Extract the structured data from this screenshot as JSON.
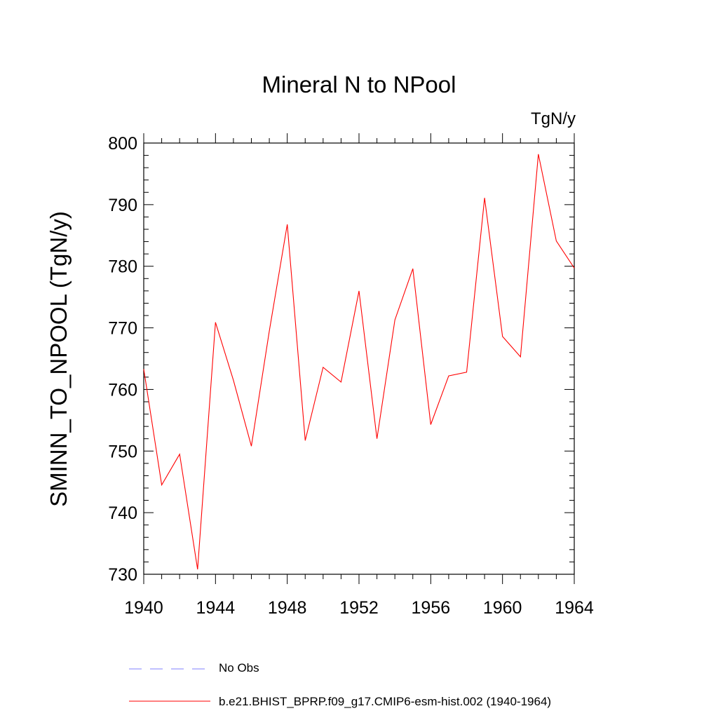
{
  "chart_data": {
    "type": "line",
    "title": "Mineral N to NPool",
    "units_label": "TgN/y",
    "xlabel": "",
    "ylabel": "SMINN_TO_NPOOL  (TgN/y)",
    "xlim": [
      1940,
      1964
    ],
    "ylim": [
      730,
      800
    ],
    "x_ticks": [
      1940,
      1944,
      1948,
      1952,
      1956,
      1960,
      1964
    ],
    "y_ticks": [
      730,
      740,
      750,
      760,
      770,
      780,
      790,
      800
    ],
    "grid": false,
    "legend_position": "bottom",
    "series": [
      {
        "name": "b.e21.BHIST_BPRP.f09_g17.CMIP6-esm-hist.002 (1940-1964)",
        "color": "#ff0000",
        "style": "solid",
        "x": [
          1940,
          1941,
          1942,
          1943,
          1944,
          1945,
          1946,
          1947,
          1948,
          1949,
          1950,
          1951,
          1952,
          1953,
          1954,
          1955,
          1956,
          1957,
          1958,
          1959,
          1960,
          1961,
          1962,
          1963,
          1964
        ],
        "y": [
          763.3,
          744.5,
          749.5,
          730.8,
          770.9,
          761.5,
          750.8,
          769.5,
          786.8,
          751.7,
          763.6,
          761.2,
          776.0,
          752.0,
          771.3,
          779.6,
          754.3,
          762.2,
          762.8,
          791.1,
          768.6,
          765.3,
          798.2,
          784.1,
          779.7
        ]
      }
    ],
    "legend": [
      {
        "label": "No Obs",
        "color": "#8080ff",
        "style": "dashed"
      },
      {
        "label": "b.e21.BHIST_BPRP.f09_g17.CMIP6-esm-hist.002 (1940-1964)",
        "color": "#ff0000",
        "style": "solid"
      }
    ]
  }
}
